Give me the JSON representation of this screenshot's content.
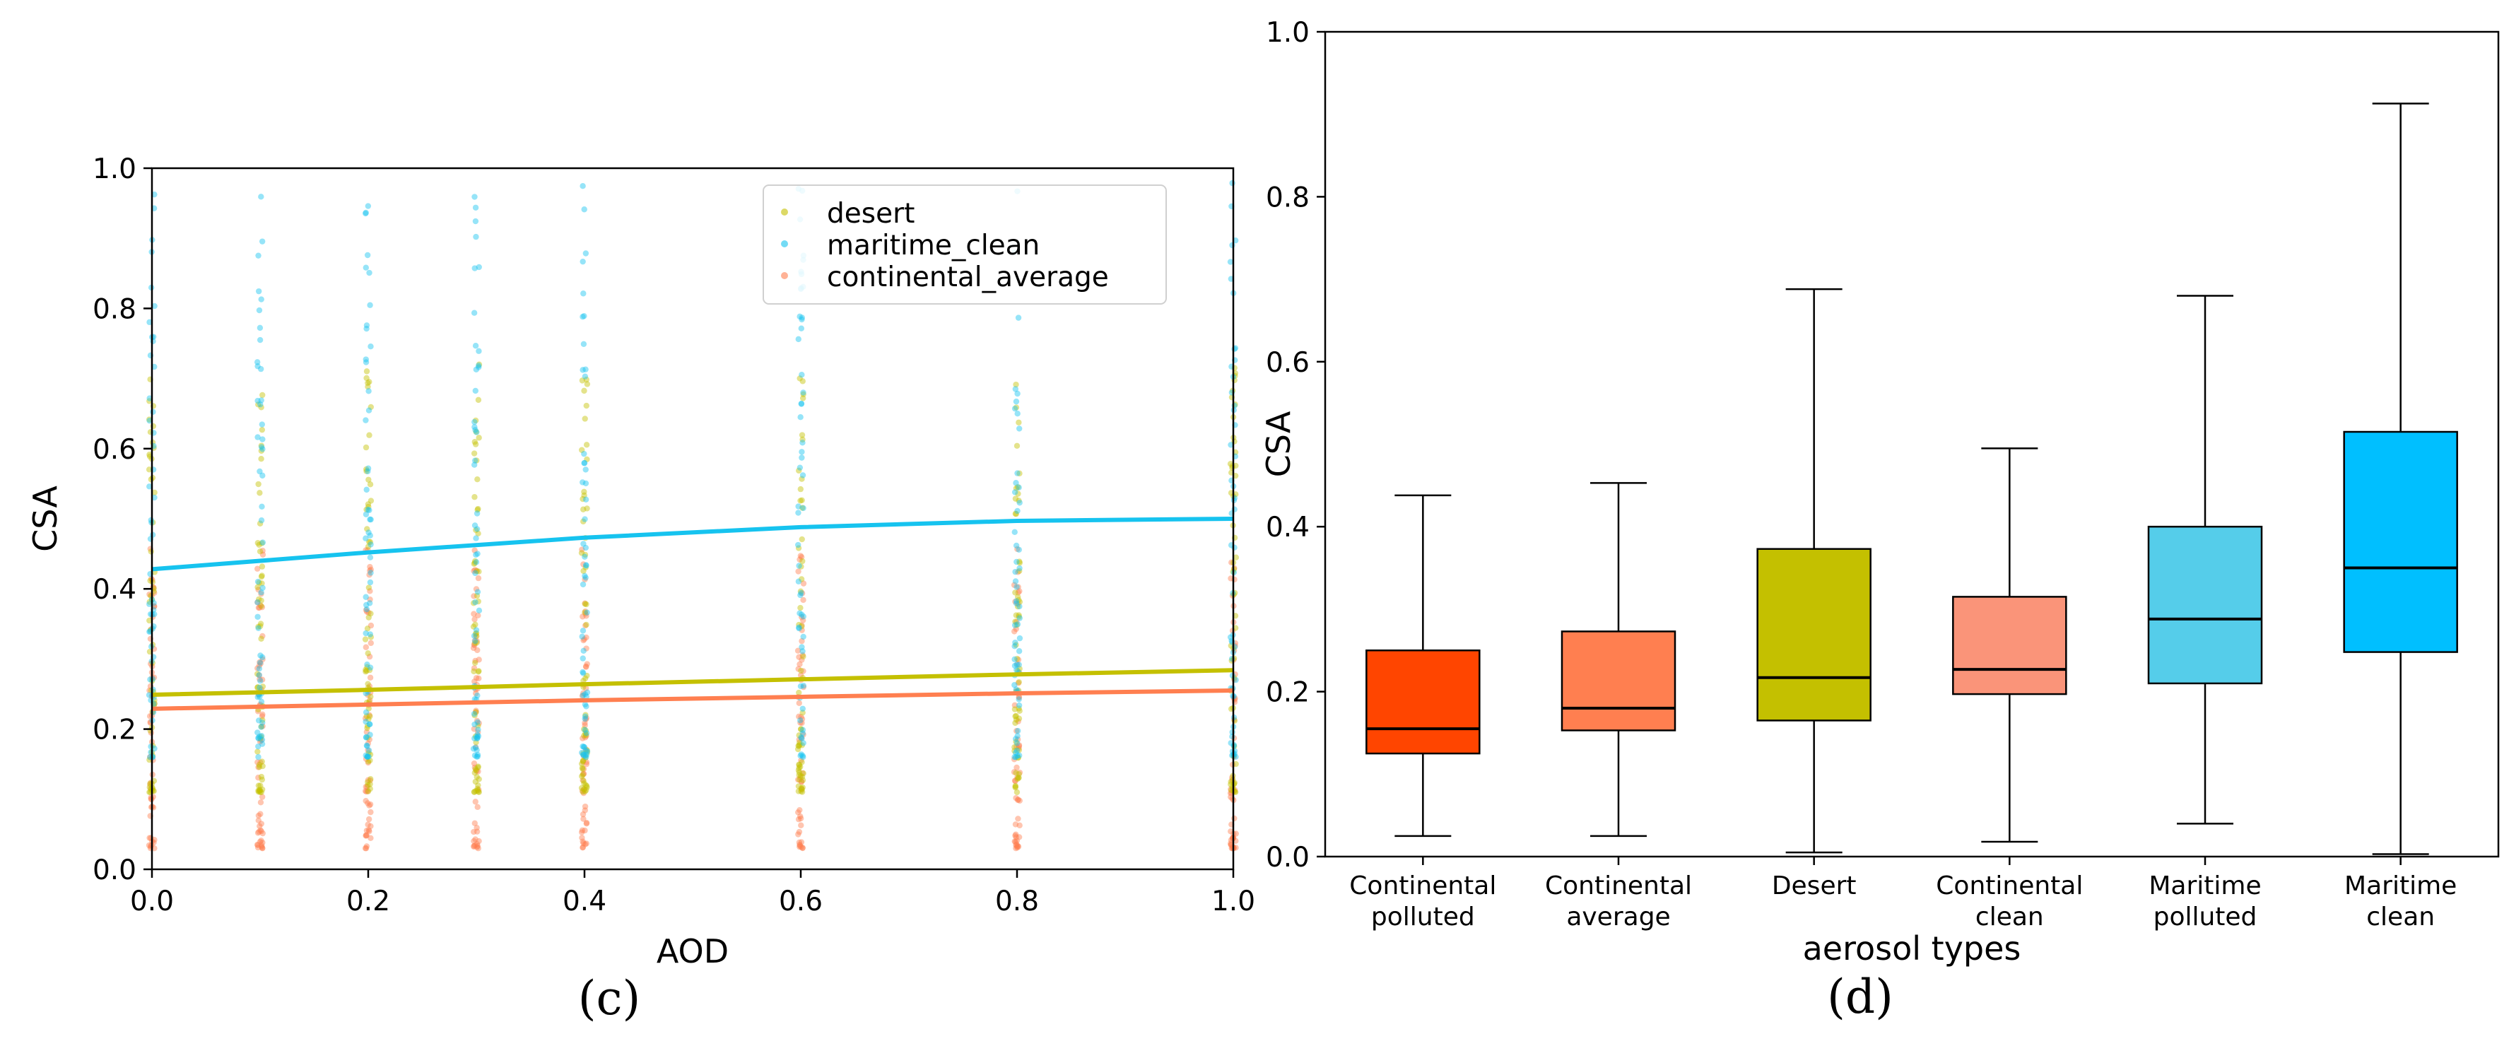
{
  "panel_c_label": "(c)",
  "panel_d_label": "(d)",
  "chart_data": [
    {
      "type": "scatter",
      "xlabel": "AOD",
      "ylabel": "CSA",
      "xlim": [
        0.0,
        1.0
      ],
      "ylim": [
        0.0,
        1.0
      ],
      "xticks": [
        "0.0",
        "0.2",
        "0.4",
        "0.6",
        "0.8",
        "1.0"
      ],
      "yticks": [
        "0.0",
        "0.2",
        "0.4",
        "0.6",
        "0.8",
        "1.0"
      ],
      "grid": false,
      "legend_position": "top-right",
      "x_samples": [
        0.0,
        0.1,
        0.2,
        0.3,
        0.4,
        0.6,
        0.8,
        1.0
      ],
      "series": [
        {
          "name": "desert",
          "color": "#c4c000",
          "scatter_range": [
            0.11,
            0.72
          ],
          "fit_x": [
            0.0,
            0.2,
            0.4,
            0.6,
            0.8,
            1.0
          ],
          "fit_y": [
            0.249,
            0.256,
            0.264,
            0.271,
            0.278,
            0.284
          ]
        },
        {
          "name": "maritime_clean",
          "color": "#16c3ef",
          "scatter_range": [
            0.16,
            0.98
          ],
          "fit_x": [
            0.0,
            0.2,
            0.4,
            0.6,
            0.8,
            1.0
          ],
          "fit_y": [
            0.428,
            0.452,
            0.473,
            0.488,
            0.497,
            0.5
          ]
        },
        {
          "name": "continental_average",
          "color": "#ff7f50",
          "scatter_range": [
            0.03,
            0.46
          ],
          "fit_x": [
            0.0,
            0.2,
            0.4,
            0.6,
            0.8,
            1.0
          ],
          "fit_y": [
            0.229,
            0.235,
            0.241,
            0.246,
            0.251,
            0.255
          ]
        }
      ]
    },
    {
      "type": "box",
      "xlabel": "aerosol types",
      "ylabel": "CSA",
      "ylim": [
        0.0,
        1.0
      ],
      "yticks": [
        "0.0",
        "0.2",
        "0.4",
        "0.6",
        "0.8",
        "1.0"
      ],
      "grid": false,
      "boxes": [
        {
          "label": [
            "Continental",
            "polluted"
          ],
          "color": "#ff4500",
          "whisker_low": 0.025,
          "q1": 0.125,
          "median": 0.155,
          "q3": 0.25,
          "whisker_high": 0.438
        },
        {
          "label": [
            "Continental",
            "average"
          ],
          "color": "#ff7f50",
          "whisker_low": 0.025,
          "q1": 0.153,
          "median": 0.18,
          "q3": 0.273,
          "whisker_high": 0.453
        },
        {
          "label": [
            "Desert"
          ],
          "color": "#c4c000",
          "whisker_low": 0.005,
          "q1": 0.165,
          "median": 0.217,
          "q3": 0.373,
          "whisker_high": 0.688
        },
        {
          "label": [
            "Continental",
            "clean"
          ],
          "color": "#fa9479",
          "whisker_low": 0.018,
          "q1": 0.197,
          "median": 0.227,
          "q3": 0.315,
          "whisker_high": 0.495
        },
        {
          "label": [
            "Maritime",
            "polluted"
          ],
          "color": "#55cdea",
          "whisker_low": 0.04,
          "q1": 0.21,
          "median": 0.288,
          "q3": 0.4,
          "whisker_high": 0.68
        },
        {
          "label": [
            "Maritime",
            "clean"
          ],
          "color": "#00bfff",
          "whisker_low": 0.003,
          "q1": 0.248,
          "median": 0.35,
          "q3": 0.515,
          "whisker_high": 0.913
        }
      ]
    }
  ]
}
